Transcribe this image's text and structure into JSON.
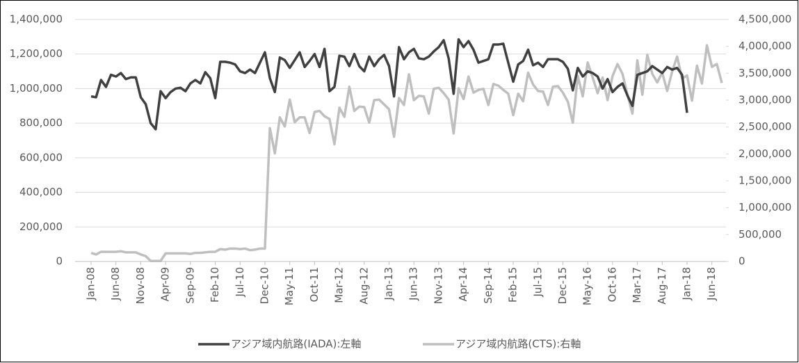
{
  "chart_data": {
    "type": "line",
    "categories": [
      "Jan-08",
      null,
      null,
      null,
      null,
      "Jun-08",
      null,
      null,
      null,
      null,
      "Nov-08",
      null,
      null,
      null,
      null,
      "Apr-09",
      null,
      null,
      null,
      null,
      "Sep-09",
      null,
      null,
      null,
      null,
      "Feb-10",
      null,
      null,
      null,
      null,
      "Jul-10",
      null,
      null,
      null,
      null,
      "Dec-10",
      null,
      null,
      null,
      null,
      "May-11",
      null,
      null,
      null,
      null,
      "Oct-11",
      null,
      null,
      null,
      null,
      "Mar-12",
      null,
      null,
      null,
      null,
      "Aug-12",
      null,
      null,
      null,
      null,
      "Jan-13",
      null,
      null,
      null,
      null,
      "Jun-13",
      null,
      null,
      null,
      null,
      "Nov-13",
      null,
      null,
      null,
      null,
      "Apr-14",
      null,
      null,
      null,
      null,
      "Sep-14",
      null,
      null,
      null,
      null,
      "Feb-15",
      null,
      null,
      null,
      null,
      "Jul-15",
      null,
      null,
      null,
      null,
      "Dec-15",
      null,
      null,
      null,
      null,
      "May-16",
      null,
      null,
      null,
      null,
      "Oct-16",
      null,
      null,
      null,
      null,
      "Mar-17",
      null,
      null,
      null,
      null,
      "Aug-17",
      null,
      null,
      null,
      null,
      "Jan-18",
      null,
      null,
      null,
      null,
      "Jun-18",
      null,
      null
    ],
    "series": [
      {
        "name": "アジア域内航路(IADA):左軸",
        "color": "#404040",
        "values": [
          955000,
          950000,
          1050000,
          1010000,
          1080000,
          1070000,
          1090000,
          1055000,
          1065000,
          1065000,
          950000,
          910000,
          800000,
          765000,
          985000,
          945000,
          980000,
          1000000,
          1005000,
          985000,
          1030000,
          1050000,
          1030000,
          1095000,
          1060000,
          945000,
          1155000,
          1155000,
          1150000,
          1140000,
          1100000,
          1090000,
          1110000,
          1090000,
          1150000,
          1210000,
          1060000,
          980000,
          1180000,
          1165000,
          1120000,
          1165000,
          1210000,
          1125000,
          1160000,
          1200000,
          1125000,
          1230000,
          985000,
          1010000,
          1190000,
          1185000,
          1130000,
          1200000,
          1130000,
          1100000,
          1185000,
          1130000,
          1170000,
          1195000,
          1130000,
          955000,
          1240000,
          1170000,
          1210000,
          1230000,
          1175000,
          1170000,
          1185000,
          1215000,
          1240000,
          1280000,
          1175000,
          970000,
          1285000,
          1240000,
          1275000,
          1225000,
          1150000,
          1160000,
          1170000,
          1255000,
          1255000,
          1260000,
          1150000,
          1040000,
          1140000,
          1160000,
          1225000,
          1135000,
          1150000,
          1125000,
          1170000,
          1170000,
          1170000,
          1155000,
          1115000,
          990000,
          1120000,
          1070000,
          1100000,
          1090000,
          1070000,
          1000000,
          1055000,
          980000,
          1010000,
          1030000,
          960000,
          900000,
          1080000,
          1090000,
          1100000,
          1130000,
          1110000,
          1090000,
          1125000,
          1110000,
          1120000,
          1080000,
          860000,
          null,
          null,
          null,
          null,
          null,
          null,
          null
        ]
      },
      {
        "name": "アジア域内航路(CTS):右軸",
        "color": "#bfbfbf",
        "axis": "y2",
        "values": [
          160000,
          130000,
          180000,
          180000,
          180000,
          180000,
          190000,
          170000,
          170000,
          170000,
          130000,
          100000,
          10000,
          10000,
          10000,
          150000,
          150000,
          150000,
          150000,
          150000,
          140000,
          160000,
          160000,
          170000,
          180000,
          180000,
          230000,
          220000,
          240000,
          240000,
          230000,
          240000,
          210000,
          220000,
          240000,
          240000,
          2480000,
          2010000,
          2680000,
          2510000,
          3010000,
          2590000,
          2680000,
          2680000,
          2390000,
          2780000,
          2800000,
          2700000,
          2650000,
          2180000,
          2860000,
          2690000,
          3250000,
          2800000,
          2880000,
          2870000,
          2580000,
          3000000,
          3010000,
          2920000,
          2830000,
          2320000,
          3040000,
          2910000,
          3480000,
          3000000,
          3080000,
          3070000,
          2750000,
          3210000,
          3230000,
          3130000,
          3010000,
          2380000,
          3220000,
          3020000,
          3440000,
          3140000,
          3190000,
          3210000,
          2910000,
          3300000,
          3270000,
          3190000,
          3120000,
          2720000,
          3120000,
          2980000,
          3510000,
          3290000,
          3170000,
          3160000,
          2910000,
          3250000,
          3260000,
          3140000,
          2970000,
          2580000,
          3450000,
          3070000,
          3700000,
          3420000,
          3130000,
          3420000,
          3000000,
          3450000,
          3670000,
          3490000,
          3100000,
          2750000,
          3740000,
          3100000,
          3840000,
          3490000,
          3330000,
          3510000,
          3170000,
          3530000,
          3810000,
          3400000,
          3460000,
          2990000,
          3640000,
          3310000,
          4020000,
          3620000,
          3670000,
          3320000
        ]
      }
    ],
    "ylim": [
      0,
      1400000
    ],
    "yticks": [
      0,
      {
        "value": 200000,
        "label": "200,000"
      },
      {
        "value": 400000,
        "label": "400,000"
      },
      {
        "value": 600000,
        "label": "600,000"
      },
      {
        "value": 800000,
        "label": "800,000"
      },
      {
        "value": 1000000,
        "label": "1,000,000"
      },
      {
        "value": 1200000,
        "label": "1,200,000"
      },
      {
        "value": 1400000,
        "label": "1,400,000"
      }
    ],
    "y2lim": [
      0,
      4500000
    ],
    "y2ticks": [
      0,
      {
        "value": 500000,
        "label": "500,000"
      },
      {
        "value": 1000000,
        "label": "1,000,000"
      },
      {
        "value": 1500000,
        "label": "1,500,000"
      },
      {
        "value": 2000000,
        "label": "2,000,000"
      },
      {
        "value": 2500000,
        "label": "2,500,000"
      },
      {
        "value": 3000000,
        "label": "3,000,000"
      },
      {
        "value": 3500000,
        "label": "3,500,000"
      },
      {
        "value": 4000000,
        "label": "4,000,000"
      },
      {
        "value": 4500000,
        "label": "4,500,000"
      }
    ],
    "grid": true,
    "legend": "bottom"
  }
}
